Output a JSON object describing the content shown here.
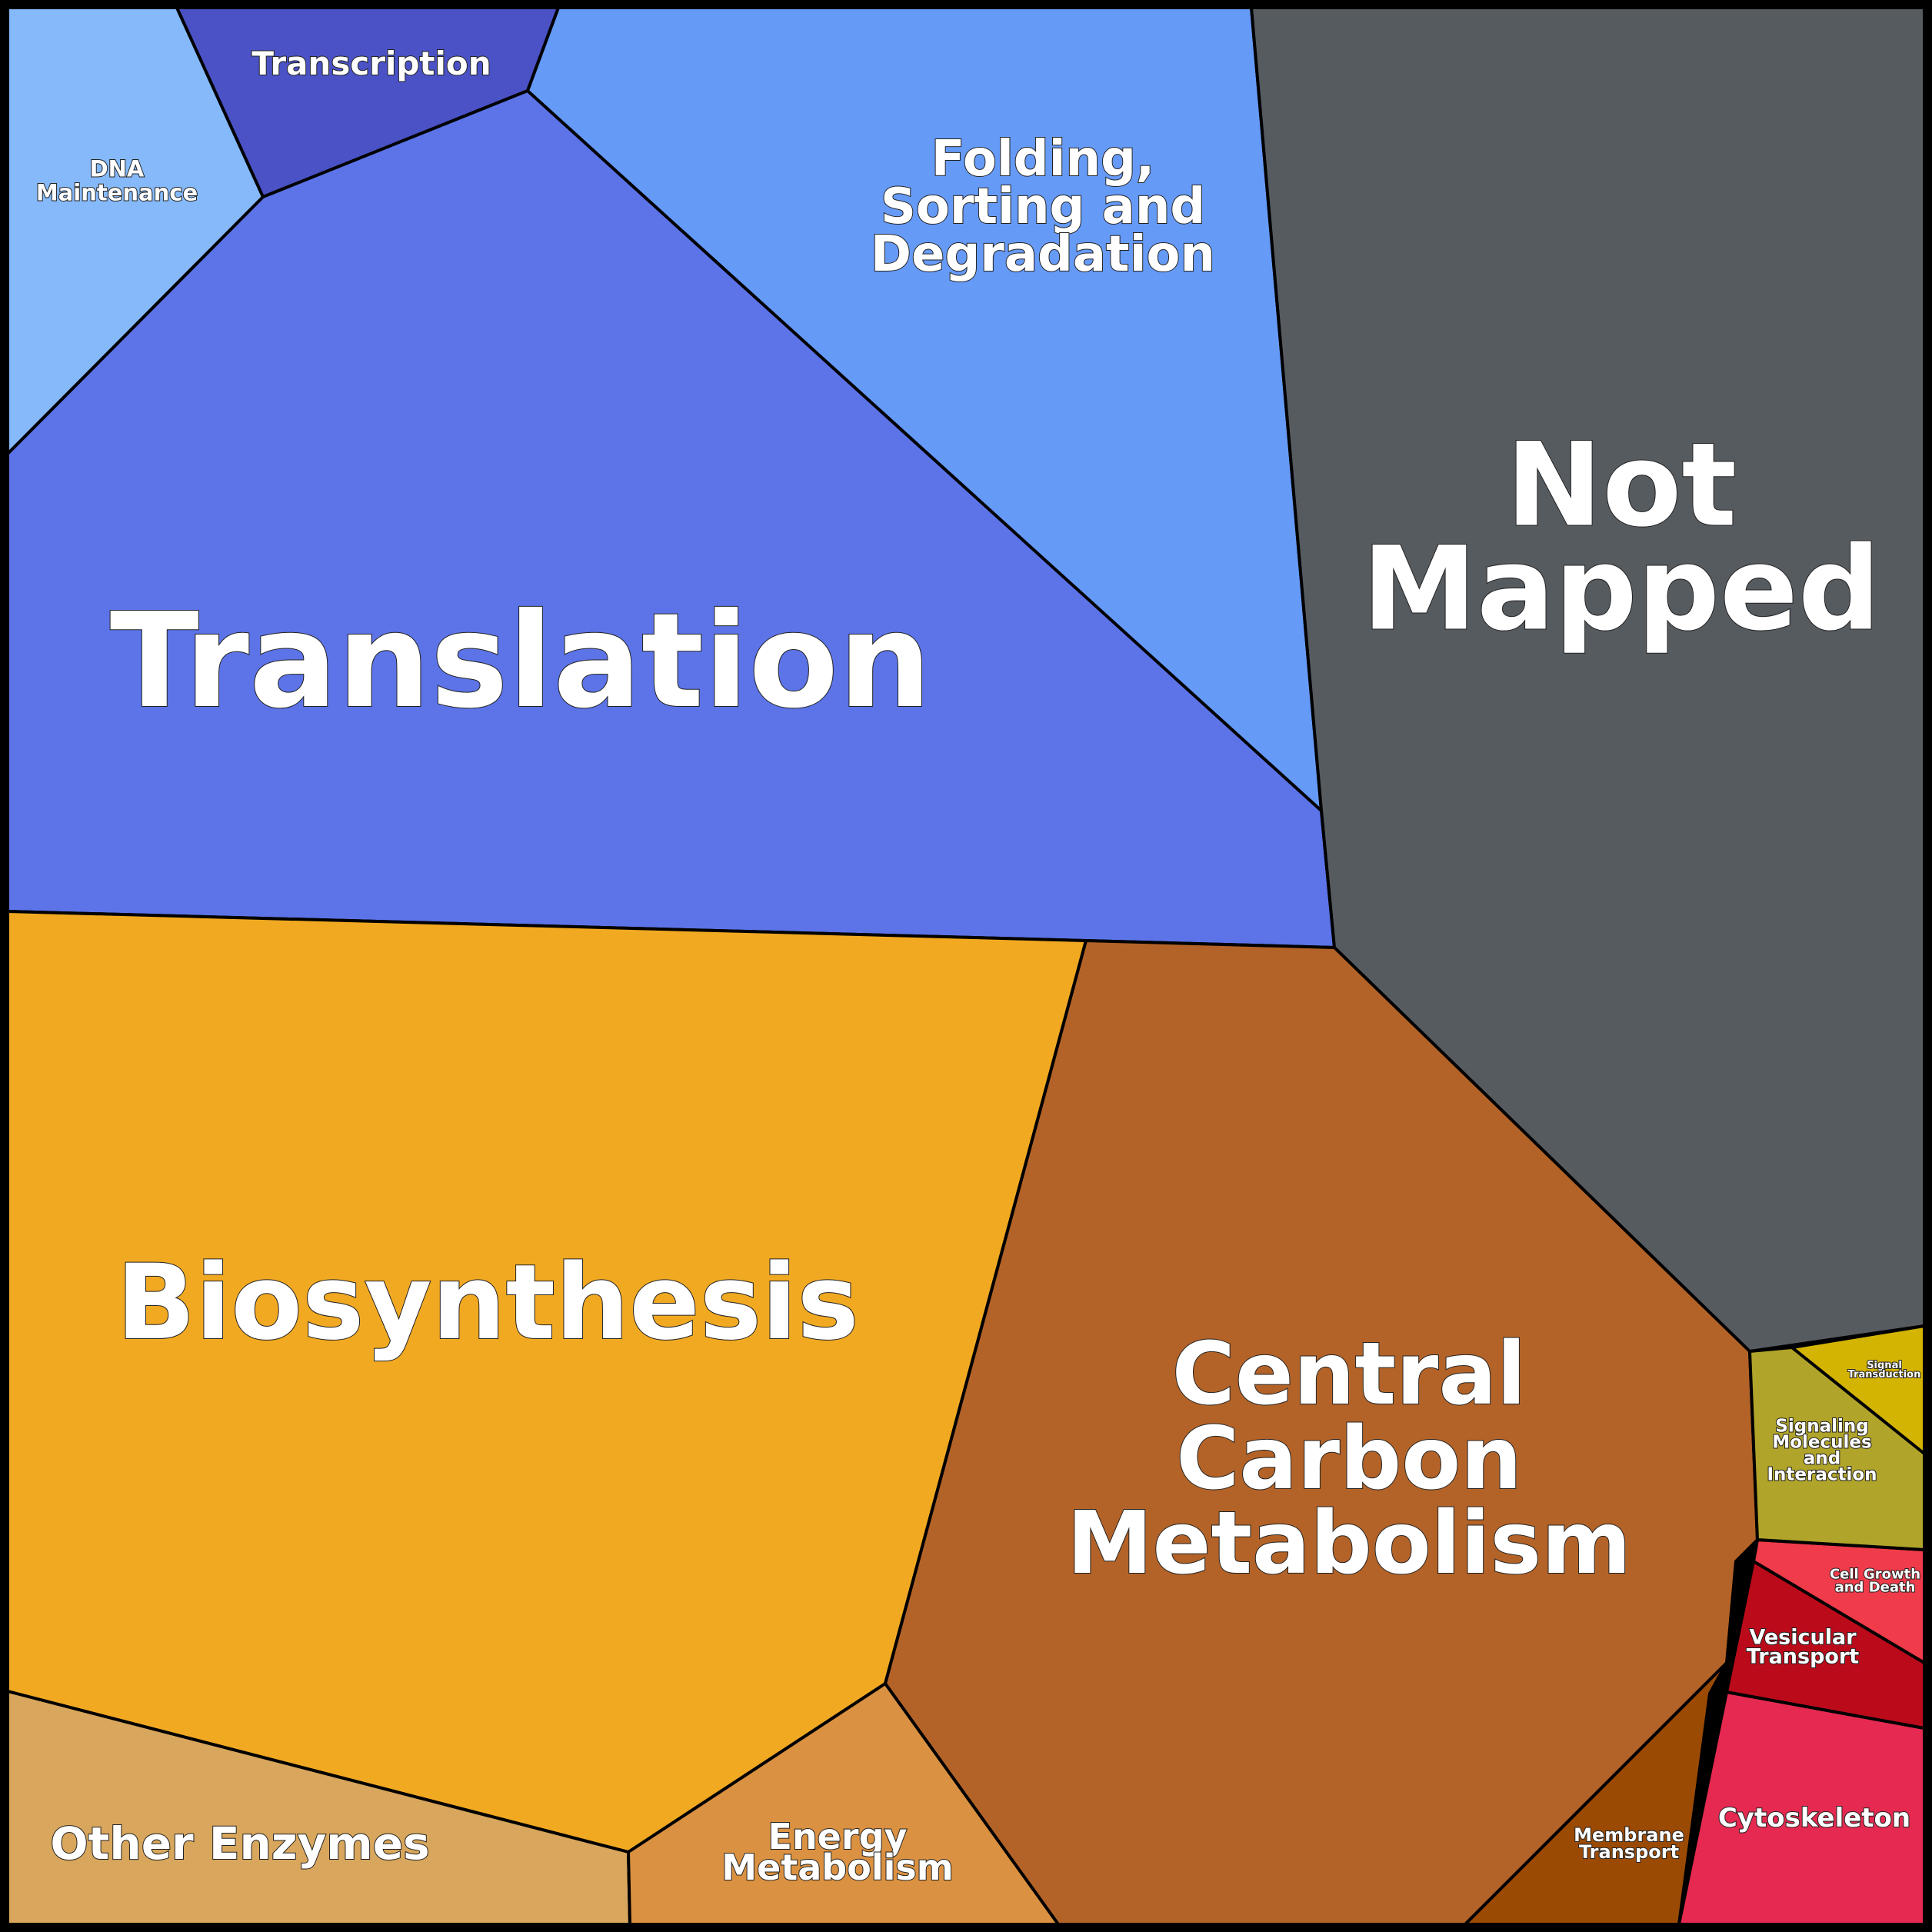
{
  "cells": {
    "dna_maintenance": {
      "lines": [
        "DNA",
        "Maintenance"
      ],
      "color": "#85b9f9"
    },
    "transcription": {
      "lines": [
        "Transcription"
      ],
      "color": "#4a52c5"
    },
    "translation": {
      "lines": [
        "Translation"
      ],
      "color": "#5c74e7"
    },
    "folding": {
      "lines": [
        "Folding,",
        "Sorting and",
        "Degradation"
      ],
      "color": "#669af7"
    },
    "not_mapped": {
      "lines": [
        "Not",
        "Mapped"
      ],
      "color": "#565b60"
    },
    "biosynthesis": {
      "lines": [
        "Biosynthesis"
      ],
      "color": "#f1a922"
    },
    "central_carbon": {
      "lines": [
        "Central",
        "Carbon",
        "Metabolism"
      ],
      "color": "#b36328"
    },
    "other_enzymes": {
      "lines": [
        "Other Enzymes"
      ],
      "color": "#d8a65c"
    },
    "energy_metabolism": {
      "lines": [
        "Energy",
        "Metabolism"
      ],
      "color": "#da9141"
    },
    "membrane_transport": {
      "lines": [
        "Membrane",
        "Transport"
      ],
      "color": "#9b4a04"
    },
    "cytoskeleton": {
      "lines": [
        "Cytoskeleton"
      ],
      "color": "#e52950"
    },
    "vesicular_transport": {
      "lines": [
        "Vesicular",
        "Transport"
      ],
      "color": "#bb0b1b"
    },
    "cell_growth": {
      "lines": [
        "Cell Growth",
        "and Death"
      ],
      "color": "#ef3b4a"
    },
    "signaling_molecules": {
      "lines": [
        "Signaling",
        "Molecules",
        "and",
        "Interaction"
      ],
      "color": "#b0a42a"
    },
    "signal_transduction": {
      "lines": [
        "Signal",
        "Transduction"
      ],
      "color": "#d4b402"
    }
  }
}
